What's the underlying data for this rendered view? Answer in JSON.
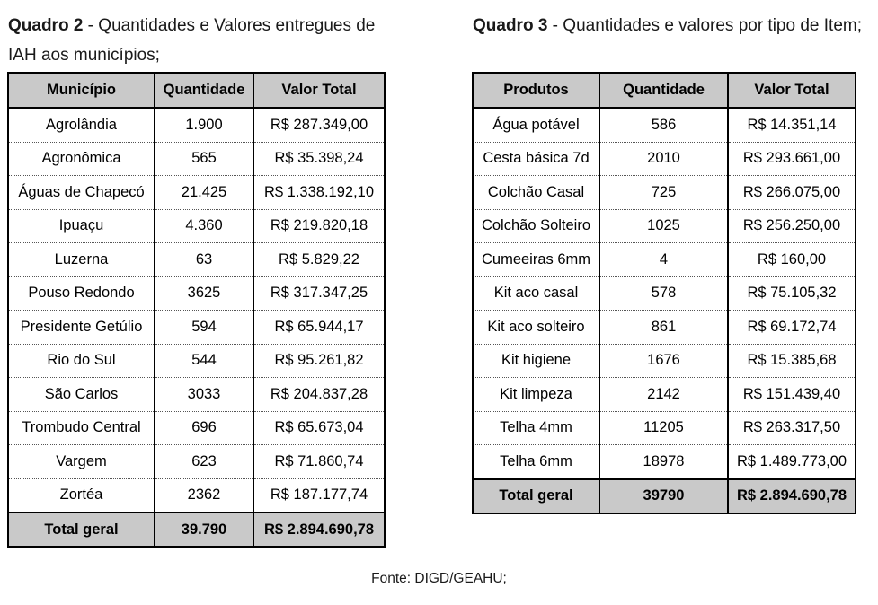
{
  "quadro2": {
    "caption_bold": "Quadro 2",
    "caption_text": " - Quantidades e Valores entregues de IAH aos municípios;",
    "headers": [
      "Município",
      "Quantidade",
      "Valor Total"
    ],
    "rows": [
      [
        "Agrolândia",
        "1.900",
        "R$ 287.349,00"
      ],
      [
        "Agronômica",
        "565",
        "R$ 35.398,24"
      ],
      [
        "Águas de Chapecó",
        "21.425",
        "R$ 1.338.192,10"
      ],
      [
        "Ipuaçu",
        "4.360",
        "R$ 219.820,18"
      ],
      [
        "Luzerna",
        "63",
        "R$ 5.829,22"
      ],
      [
        "Pouso Redondo",
        "3625",
        "R$ 317.347,25"
      ],
      [
        "Presidente Getúlio",
        "594",
        "R$ 65.944,17"
      ],
      [
        "Rio do Sul",
        "544",
        "R$ 95.261,82"
      ],
      [
        "São Carlos",
        "3033",
        "R$ 204.837,28"
      ],
      [
        "Trombudo Central",
        "696",
        "R$ 65.673,04"
      ],
      [
        "Vargem",
        "623",
        "R$ 71.860,74"
      ],
      [
        "Zortéa",
        "2362",
        "R$ 187.177,74"
      ]
    ],
    "total": [
      "Total geral",
      "39.790",
      "R$ 2.894.690,78"
    ]
  },
  "quadro3": {
    "caption_bold": "Quadro 3",
    "caption_text": " - Quantidades e valores por tipo de Item;",
    "headers": [
      "Produtos",
      "Quantidade",
      "Valor Total"
    ],
    "rows": [
      [
        "Água potável",
        "586",
        "R$ 14.351,14"
      ],
      [
        "Cesta básica 7d",
        "2010",
        "R$ 293.661,00"
      ],
      [
        "Colchão Casal",
        "725",
        "R$ 266.075,00"
      ],
      [
        "Colchão Solteiro",
        "1025",
        "R$ 256.250,00"
      ],
      [
        "Cumeeiras 6mm",
        "4",
        "R$ 160,00"
      ],
      [
        "Kit aco casal",
        "578",
        "R$ 75.105,32"
      ],
      [
        "Kit aco solteiro",
        "861",
        "R$ 69.172,74"
      ],
      [
        "Kit higiene",
        "1676",
        "R$ 15.385,68"
      ],
      [
        "Kit limpeza",
        "2142",
        "R$ 151.439,40"
      ],
      [
        "Telha 4mm",
        "11205",
        "R$ 263.317,50"
      ],
      [
        "Telha 6mm",
        "18978",
        "R$ 1.489.773,00"
      ]
    ],
    "total": [
      "Total geral",
      "39790",
      "R$ 2.894.690,78"
    ]
  },
  "source": "Fonte: DIGD/GEAHU;"
}
